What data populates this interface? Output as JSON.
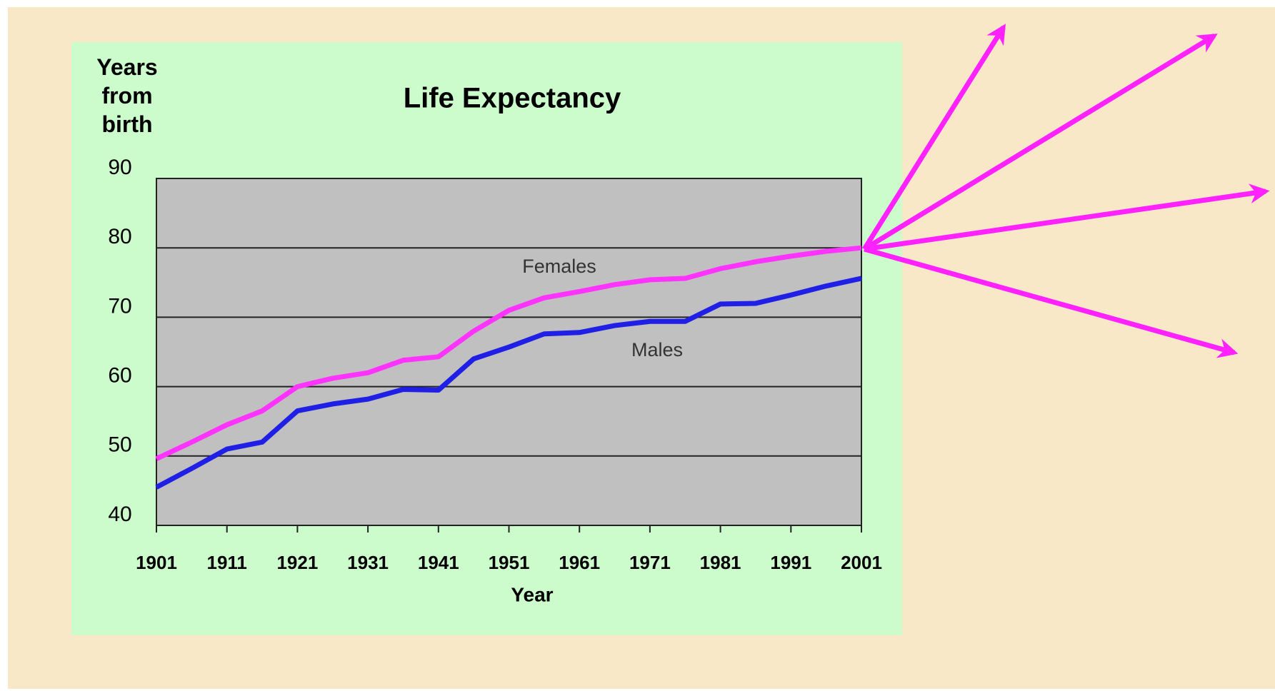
{
  "chart_data": {
    "type": "line",
    "title": "Life Expectancy",
    "y_label": "Years from birth",
    "x_label": "Year",
    "annotations": [
      "Females",
      "Males"
    ],
    "x": [
      1901,
      1906,
      1911,
      1916,
      1921,
      1926,
      1931,
      1936,
      1941,
      1946,
      1951,
      1956,
      1961,
      1966,
      1971,
      1976,
      1981,
      1986,
      1991,
      1996,
      2001
    ],
    "series": [
      {
        "name": "Females",
        "color": "#ff33ff",
        "values": [
          49.6,
          52,
          54.5,
          56.5,
          60,
          61.2,
          62,
          63.8,
          64.3,
          68,
          71,
          72.8,
          73.7,
          74.7,
          75.4,
          75.6,
          77,
          78,
          78.8,
          79.5,
          80
        ]
      },
      {
        "name": "Males",
        "color": "#1f1fe6",
        "values": [
          45.5,
          48.2,
          51,
          52,
          56.5,
          57.5,
          58.2,
          59.6,
          59.5,
          64,
          65.7,
          67.6,
          67.8,
          68.8,
          69.4,
          69.4,
          71.9,
          72,
          73.2,
          74.5,
          75.6
        ]
      }
    ],
    "xlim": [
      1901,
      2001
    ],
    "xticks": [
      1901,
      1911,
      1921,
      1931,
      1941,
      1951,
      1961,
      1971,
      1981,
      1991,
      2001
    ],
    "ylim": [
      40,
      90
    ],
    "yticks": [
      40,
      50,
      60,
      70,
      80,
      90
    ],
    "grid": true
  }
}
